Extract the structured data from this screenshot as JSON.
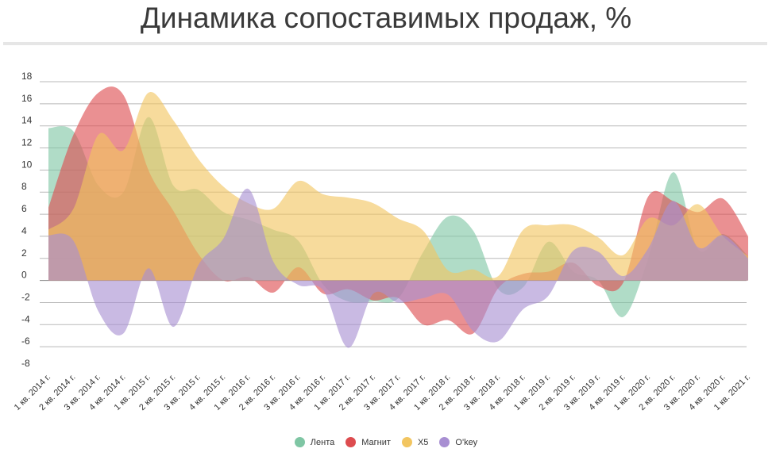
{
  "chart_data": {
    "type": "area",
    "title": "Динамика сопоставимых продаж, %",
    "xlabel": "",
    "ylabel": "",
    "ylim": [
      -8,
      18
    ],
    "yticks": [
      18,
      16,
      14,
      12,
      10,
      8,
      6,
      4,
      2,
      0,
      -2,
      -4,
      -6,
      -8
    ],
    "grid": true,
    "legend_position": "bottom",
    "categories": [
      "1 кв. 2014 г.",
      "2 кв. 2014 г.",
      "3 кв. 2014 г.",
      "4 кв. 2014 г.",
      "1 кв. 2015 г.",
      "2 кв. 2015 г.",
      "3 кв. 2015 г.",
      "4 кв. 2015 г.",
      "1 кв. 2016 г.",
      "2 кв. 2016 г.",
      "3 кв. 2016 г.",
      "4 кв. 2016 г.",
      "1 кв. 2017 г.",
      "2 кв. 2017 г.",
      "3 кв. 2017 г.",
      "4 кв. 2017 г.",
      "1 кв. 2018 г.",
      "2 кв. 2018 г.",
      "3 кв. 2018 г.",
      "4 кв. 2018 г.",
      "1 кв. 2019 г.",
      "2 кв. 2019 г.",
      "3 кв. 2019 г.",
      "4 кв. 2019 г.",
      "1 кв. 2020 г.",
      "2 кв. 2020 г.",
      "3 кв. 2020 г.",
      "4 кв. 2020 г.",
      "1 кв. 2021 г."
    ],
    "series": [
      {
        "name": "Лента",
        "color": "#7fc6a4",
        "values": [
          13.8,
          13.5,
          8.6,
          8.0,
          14.8,
          8.6,
          8.2,
          6.2,
          5.5,
          4.6,
          3.6,
          -0.4,
          -1.9,
          -1.9,
          -1.6,
          2.6,
          5.8,
          4.5,
          -0.8,
          -0.6,
          3.5,
          0.8,
          0.0,
          -3.3,
          2.0,
          9.8,
          2.8,
          4.2,
          2.2
        ]
      },
      {
        "name": "Магнит",
        "color": "#dd4c4f",
        "values": [
          6.6,
          13.2,
          17.0,
          16.8,
          10.0,
          6.3,
          2.4,
          0.0,
          0.3,
          -1.1,
          1.2,
          -1.2,
          -0.8,
          -1.8,
          -1.6,
          -4.0,
          -3.6,
          -4.8,
          -0.7,
          0.6,
          0.8,
          1.6,
          -0.5,
          -0.2,
          7.6,
          7.2,
          6.2,
          7.4,
          4.0
        ]
      },
      {
        "name": "X5",
        "color": "#f2c560",
        "values": [
          4.6,
          6.5,
          13.2,
          11.8,
          17.0,
          14.5,
          11.0,
          8.5,
          7.0,
          6.5,
          9.0,
          7.8,
          7.5,
          7.0,
          5.6,
          4.5,
          0.9,
          1.0,
          0.4,
          4.6,
          5.0,
          5.0,
          3.9,
          2.3,
          5.6,
          5.0,
          6.9,
          4.0,
          2.2
        ]
      },
      {
        "name": "O'key",
        "color": "#a88fd2",
        "values": [
          4.1,
          3.6,
          -2.8,
          -4.8,
          1.1,
          -4.2,
          1.4,
          3.8,
          8.3,
          1.7,
          -0.4,
          -0.9,
          -6.1,
          -1.2,
          -2.0,
          -1.6,
          -1.3,
          -4.6,
          -5.5,
          -2.6,
          -1.4,
          2.7,
          2.6,
          0.4,
          2.9,
          7.2,
          3.0,
          4.1,
          2.0
        ]
      }
    ]
  }
}
